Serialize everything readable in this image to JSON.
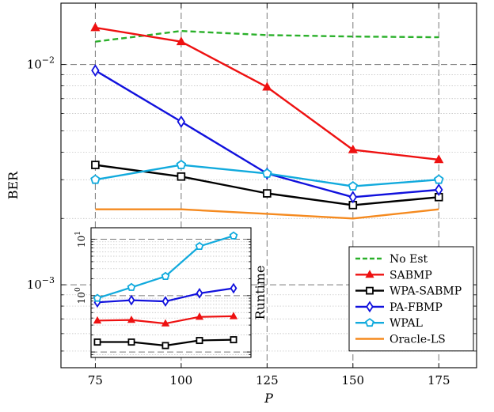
{
  "chart_data": [
    {
      "type": "line",
      "xlabel": "P",
      "ylabel": "BER",
      "yscale": "log",
      "xlim": [
        65,
        186
      ],
      "ylim": [
        0.00042,
        0.019
      ],
      "x": [
        75,
        100,
        125,
        150,
        175
      ],
      "x_ticks": [
        "75",
        "100",
        "125",
        "150",
        "175"
      ],
      "y_ticks": [
        {
          "value": 0.01,
          "base": "10",
          "exp": "−2"
        },
        {
          "value": 0.001,
          "base": "10",
          "exp": "−3"
        }
      ],
      "grid": true,
      "legend_position": "bottom-right",
      "series": [
        {
          "name": "No Est",
          "color": "#2ab02a",
          "marker": "none",
          "dash": true,
          "values": [
            0.0127,
            0.0142,
            0.0136,
            0.0134,
            0.0133
          ]
        },
        {
          "name": "SABMP",
          "color": "#ee1111",
          "marker": "triangle",
          "values": [
            0.0147,
            0.0127,
            0.0079,
            0.0041,
            0.0037
          ]
        },
        {
          "name": "WPA-SABMP",
          "color": "#000000",
          "marker": "square",
          "values": [
            0.0035,
            0.0031,
            0.0026,
            0.0023,
            0.0025
          ]
        },
        {
          "name": "PA-FBMP",
          "color": "#1111dd",
          "marker": "diamond",
          "values": [
            0.0094,
            0.0055,
            0.0032,
            0.0025,
            0.0027
          ]
        },
        {
          "name": "WPAL",
          "color": "#11aadd",
          "marker": "pentagon",
          "values": [
            0.003,
            0.0035,
            0.0032,
            0.0028,
            0.003
          ]
        },
        {
          "name": "Oracle-LS",
          "color": "#f58a1f",
          "marker": "none",
          "values": [
            0.0022,
            0.0022,
            0.0021,
            0.002,
            0.0022
          ]
        }
      ]
    },
    {
      "type": "line",
      "inset": true,
      "ylabel": "Runtime",
      "yscale": "log",
      "ylim": [
        0.08,
        16
      ],
      "x": [
        75,
        100,
        125,
        150,
        175
      ],
      "y_ticks": [
        {
          "value": 1,
          "base": "10",
          "exp": "0"
        },
        {
          "value": 10,
          "base": "10",
          "exp": "1"
        }
      ],
      "grid": true,
      "series": [
        {
          "name": "SABMP",
          "color": "#ee1111",
          "marker": "triangle",
          "values": [
            0.36,
            0.37,
            0.32,
            0.42,
            0.43
          ]
        },
        {
          "name": "WPA-SABMP",
          "color": "#000000",
          "marker": "square",
          "values": [
            0.15,
            0.15,
            0.13,
            0.16,
            0.165
          ]
        },
        {
          "name": "PA-FBMP",
          "color": "#1111dd",
          "marker": "diamond",
          "values": [
            0.76,
            0.83,
            0.79,
            1.1,
            1.35
          ]
        },
        {
          "name": "WPAL",
          "color": "#11aadd",
          "marker": "pentagon",
          "values": [
            0.9,
            1.4,
            2.2,
            7.5,
            11.5
          ]
        }
      ]
    }
  ]
}
